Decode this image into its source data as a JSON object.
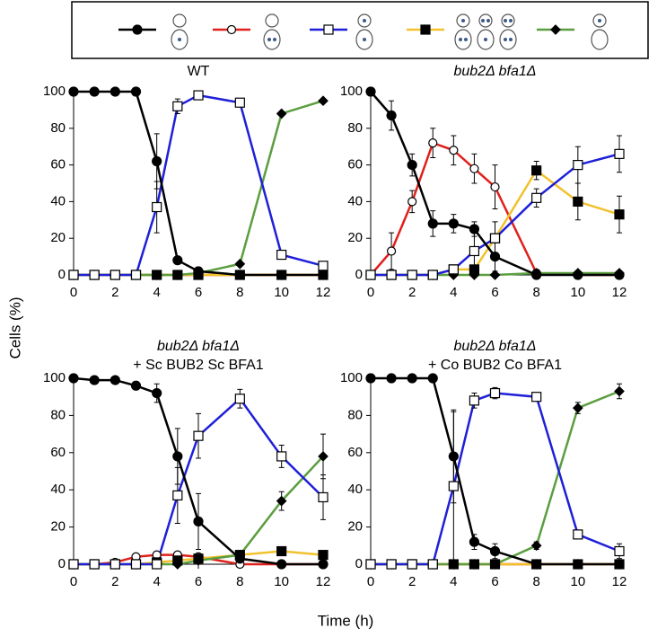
{
  "axis_labels": {
    "y": "Cells (%)",
    "x": "Time (h)"
  },
  "chart_data": [
    {
      "type": "line",
      "title": "WT",
      "title_italic": false,
      "x": [
        0,
        1,
        2,
        3,
        4,
        5,
        6,
        8,
        10,
        12
      ],
      "xlim": [
        0,
        12
      ],
      "xticks": [
        0,
        2,
        4,
        6,
        8,
        10,
        12
      ],
      "ylim": [
        0,
        100
      ],
      "yticks": [
        0,
        20,
        40,
        60,
        80,
        100
      ],
      "series": [
        {
          "color": "#000000",
          "marker": "filled-circle",
          "values": [
            100,
            100,
            100,
            100,
            62,
            8,
            2,
            0,
            0,
            0
          ],
          "errors": [
            null,
            null,
            null,
            null,
            15,
            null,
            null,
            null,
            null,
            null
          ]
        },
        {
          "color": "#e0201b",
          "marker": "open-circle",
          "values": [
            0,
            0,
            0,
            0,
            0,
            0,
            0,
            0,
            0,
            0
          ],
          "errors": [
            null,
            null,
            null,
            null,
            null,
            null,
            null,
            null,
            null,
            null
          ]
        },
        {
          "color": "#1f1fd8",
          "marker": "open-square",
          "values": [
            0,
            0,
            0,
            0,
            37,
            92,
            98,
            94,
            11,
            5
          ],
          "errors": [
            null,
            null,
            null,
            null,
            14,
            4,
            2,
            null,
            2,
            2
          ]
        },
        {
          "color": "#f2c12e",
          "marker": "filled-square",
          "values": [
            0,
            0,
            0,
            0,
            0,
            0,
            0,
            0,
            0,
            0
          ],
          "errors": [
            null,
            null,
            null,
            null,
            null,
            null,
            null,
            null,
            null,
            null
          ]
        },
        {
          "color": "#5b9e3f",
          "marker": "diamond",
          "values": [
            0,
            0,
            0,
            0,
            0,
            0,
            1,
            6,
            88,
            95
          ],
          "errors": [
            null,
            null,
            null,
            null,
            null,
            null,
            null,
            null,
            null,
            null
          ]
        }
      ]
    },
    {
      "type": "line",
      "title": "bub2Δ bfa1Δ",
      "title_italic": true,
      "x": [
        0,
        1,
        2,
        3,
        4,
        5,
        6,
        8,
        10,
        12
      ],
      "xlim": [
        0,
        12
      ],
      "xticks": [
        0,
        2,
        4,
        6,
        8,
        10,
        12
      ],
      "ylim": [
        0,
        100
      ],
      "yticks": [
        0,
        20,
        40,
        60,
        80,
        100
      ],
      "series": [
        {
          "color": "#000000",
          "marker": "filled-circle",
          "values": [
            100,
            87,
            60,
            28,
            28,
            25,
            10,
            0,
            0,
            0
          ],
          "errors": [
            null,
            8,
            6,
            7,
            5,
            4,
            8,
            null,
            null,
            null
          ]
        },
        {
          "color": "#e0201b",
          "marker": "open-circle",
          "values": [
            0,
            13,
            40,
            72,
            68,
            58,
            48,
            1,
            0,
            0
          ],
          "errors": [
            null,
            10,
            6,
            8,
            8,
            8,
            12,
            null,
            null,
            null
          ]
        },
        {
          "color": "#1f1fd8",
          "marker": "open-square",
          "values": [
            0,
            0,
            0,
            0,
            3,
            13,
            20,
            42,
            60,
            66
          ],
          "errors": [
            null,
            null,
            null,
            null,
            null,
            12,
            9,
            5,
            10,
            10
          ]
        },
        {
          "color": "#f2c12e",
          "marker": "filled-square",
          "values": [
            0,
            0,
            0,
            0,
            3,
            3,
            20,
            57,
            40,
            33
          ],
          "errors": [
            null,
            null,
            null,
            null,
            null,
            null,
            null,
            5,
            10,
            10
          ]
        },
        {
          "color": "#5b9e3f",
          "marker": "diamond",
          "values": [
            0,
            0,
            0,
            0,
            0,
            0,
            0,
            1,
            1,
            1
          ],
          "errors": [
            null,
            null,
            null,
            null,
            null,
            null,
            null,
            null,
            null,
            null
          ]
        }
      ]
    },
    {
      "type": "line",
      "title": [
        "bub2Δ bfa1Δ",
        "+ Sc BUB2 Sc BFA1"
      ],
      "title_italic": true,
      "x": [
        0,
        1,
        2,
        3,
        4,
        5,
        6,
        8,
        10,
        12
      ],
      "xlim": [
        0,
        12
      ],
      "xticks": [
        0,
        2,
        4,
        6,
        8,
        10,
        12
      ],
      "ylim": [
        0,
        100
      ],
      "yticks": [
        0,
        20,
        40,
        60,
        80,
        100
      ],
      "series": [
        {
          "color": "#000000",
          "marker": "filled-circle",
          "values": [
            100,
            99,
            99,
            96,
            92,
            58,
            23,
            3,
            0,
            0
          ],
          "errors": [
            null,
            null,
            null,
            null,
            5,
            15,
            15,
            null,
            null,
            null
          ]
        },
        {
          "color": "#e0201b",
          "marker": "open-circle",
          "values": [
            0,
            0,
            1,
            4,
            5,
            5,
            4,
            0,
            0,
            0
          ],
          "errors": [
            null,
            null,
            null,
            null,
            null,
            null,
            null,
            null,
            null,
            null
          ]
        },
        {
          "color": "#1f1fd8",
          "marker": "open-square",
          "values": [
            0,
            0,
            0,
            0,
            0,
            37,
            69,
            89,
            58,
            36
          ],
          "errors": [
            null,
            null,
            null,
            null,
            null,
            15,
            12,
            5,
            6,
            12
          ]
        },
        {
          "color": "#f2c12e",
          "marker": "filled-square",
          "values": [
            0,
            0,
            0,
            0,
            1,
            2,
            3,
            5,
            7,
            5
          ],
          "errors": [
            null,
            null,
            null,
            null,
            null,
            null,
            null,
            null,
            null,
            null
          ]
        },
        {
          "color": "#5b9e3f",
          "marker": "diamond",
          "values": [
            0,
            0,
            0,
            0,
            0,
            0,
            2,
            5,
            34,
            58
          ],
          "errors": [
            null,
            null,
            null,
            null,
            null,
            null,
            null,
            null,
            5,
            12
          ]
        }
      ]
    },
    {
      "type": "line",
      "title": [
        "bub2Δ bfa1Δ",
        "+ Co BUB2 Co BFA1"
      ],
      "title_italic": true,
      "x": [
        0,
        1,
        2,
        3,
        4,
        5,
        6,
        8,
        10,
        12
      ],
      "xlim": [
        0,
        12
      ],
      "xticks": [
        0,
        2,
        4,
        6,
        8,
        10,
        12
      ],
      "ylim": [
        0,
        100
      ],
      "yticks": [
        0,
        20,
        40,
        60,
        80,
        100
      ],
      "series": [
        {
          "color": "#000000",
          "marker": "filled-circle",
          "values": [
            100,
            100,
            100,
            100,
            58,
            12,
            7,
            0,
            0,
            0
          ],
          "errors": [
            null,
            null,
            null,
            null,
            25,
            4,
            4,
            null,
            null,
            null
          ]
        },
        {
          "color": "#e0201b",
          "marker": "open-circle",
          "values": [
            0,
            0,
            0,
            0,
            0,
            0,
            0,
            0,
            0,
            0
          ],
          "errors": [
            null,
            null,
            null,
            null,
            null,
            null,
            null,
            null,
            null,
            null
          ]
        },
        {
          "color": "#1f1fd8",
          "marker": "open-square",
          "values": [
            0,
            0,
            0,
            0,
            42,
            88,
            92,
            90,
            16,
            7
          ],
          "errors": [
            null,
            null,
            null,
            null,
            40,
            4,
            3,
            null,
            2,
            4
          ]
        },
        {
          "color": "#f2c12e",
          "marker": "filled-square",
          "values": [
            0,
            0,
            0,
            0,
            0,
            0,
            0,
            0,
            0,
            0
          ],
          "errors": [
            null,
            null,
            null,
            null,
            null,
            null,
            null,
            null,
            null,
            null
          ]
        },
        {
          "color": "#5b9e3f",
          "marker": "diamond",
          "values": [
            0,
            0,
            0,
            0,
            0,
            0,
            0,
            10,
            84,
            93
          ],
          "errors": [
            null,
            null,
            null,
            null,
            null,
            null,
            null,
            2,
            3,
            4
          ]
        }
      ]
    }
  ]
}
